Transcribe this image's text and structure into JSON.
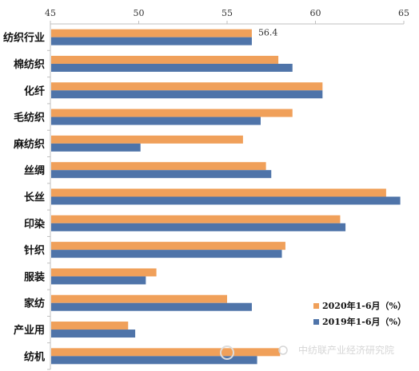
{
  "chart_data": {
    "type": "bar",
    "orientation": "horizontal",
    "categories": [
      "纺织行业",
      "棉纺织",
      "化纤",
      "毛纺织",
      "麻纺织",
      "丝绸",
      "长丝",
      "印染",
      "针织",
      "服装",
      "家纺",
      "产业用",
      "纺机"
    ],
    "series": [
      {
        "name": "2020年1-6月（%）",
        "color": "#f0a05a",
        "values": [
          56.4,
          57.9,
          60.4,
          58.7,
          55.9,
          57.2,
          64.0,
          61.4,
          58.3,
          51.0,
          55.0,
          49.4,
          58.0
        ]
      },
      {
        "name": "2019年1-6月（%）",
        "color": "#4f74a9",
        "values": [
          56.4,
          58.7,
          60.4,
          56.9,
          50.1,
          57.5,
          64.8,
          61.7,
          58.1,
          50.4,
          56.4,
          49.8,
          56.7
        ]
      }
    ],
    "xlim": [
      45,
      65
    ],
    "xticks": [
      "45",
      "50",
      "55",
      "60",
      "65"
    ],
    "data_labels": [
      {
        "category": "纺织行业",
        "series": 0,
        "text": "56.4"
      }
    ],
    "legend_position": "bottom-right",
    "grid": false
  },
  "watermark": {
    "text": "中纺联产业经济研究院"
  }
}
